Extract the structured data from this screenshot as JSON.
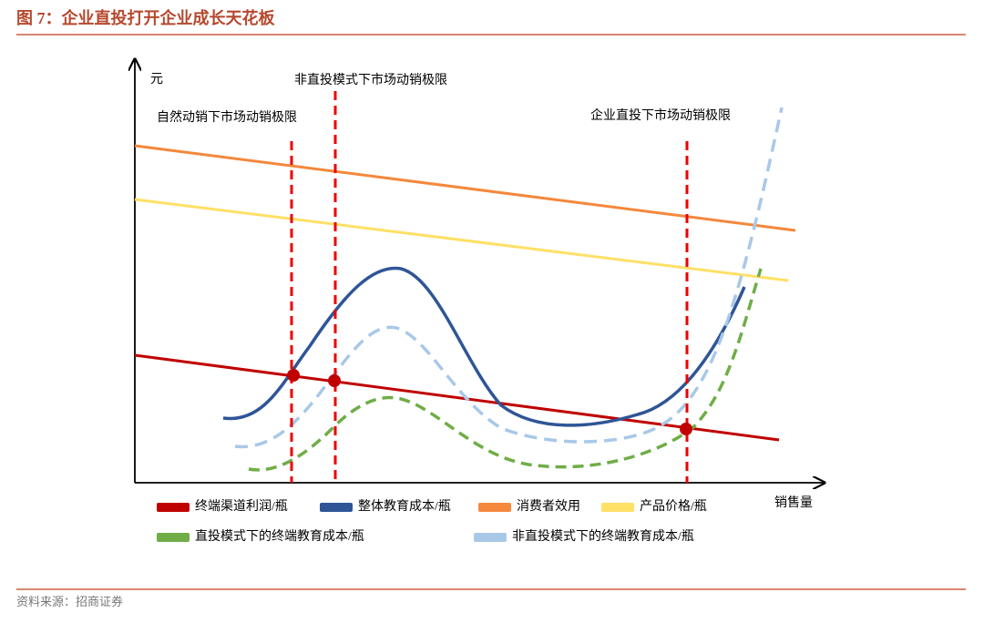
{
  "header": {
    "title": "图 7：企业直投打开企业成长天花板"
  },
  "axes": {
    "y_label": "元",
    "x_label": "销售量"
  },
  "annotations": [
    "非直投模式下市场动销极限",
    "自然动销下市场动销极限",
    "企业直投下市场动销极限"
  ],
  "legend": [
    {
      "label": "终端渠道利润/瓶",
      "color": "#c00000"
    },
    {
      "label": "整体教育成本/瓶",
      "color": "#2f5597"
    },
    {
      "label": "消费者效用",
      "color": "#f4883c"
    },
    {
      "label": "产品价格/瓶",
      "color": "#ffe066"
    },
    {
      "label": "直投模式下的终端教育成本/瓶",
      "color": "#70ad47"
    },
    {
      "label": "非直投模式下的终端教育成本/瓶",
      "color": "#a9c8e8"
    }
  ],
  "source": "资料来源：招商证券"
}
